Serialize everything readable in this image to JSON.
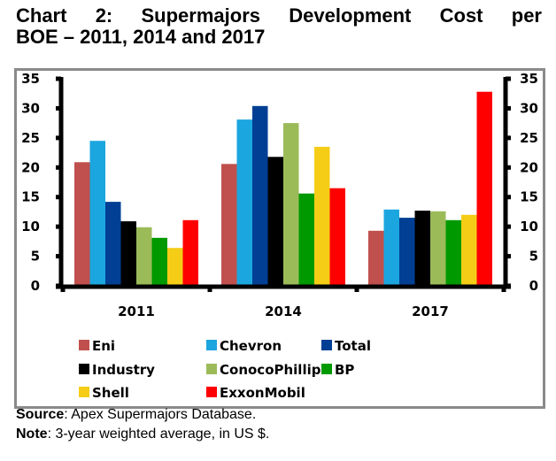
{
  "title_line1": "Chart 2: Supermajors Development Cost per",
  "title_line2": "BOE – 2011, 2014 and 2017",
  "footer": {
    "source_label": "Source",
    "source_text": ": Apex Supermajors Database.",
    "note_label": "Note",
    "note_text": ": 3-year weighted average, in US $."
  },
  "chart_data": {
    "type": "bar",
    "title": "Chart 2: Supermajors Development Cost per BOE – 2011, 2014 and 2017",
    "xlabel": "",
    "ylabel": "",
    "ylim": [
      0,
      35
    ],
    "yticks": [
      0,
      5,
      10,
      15,
      20,
      25,
      30,
      35
    ],
    "secondary_yticks": [
      0,
      5,
      10,
      15,
      20,
      25,
      30,
      35
    ],
    "grid": false,
    "legend_position": "bottom",
    "categories": [
      "2011",
      "2014",
      "2017"
    ],
    "series": [
      {
        "name": "Eni",
        "color": "#c0504d",
        "values": [
          20.9,
          20.6,
          9.3
        ]
      },
      {
        "name": "Chevron",
        "color": "#1ca6df",
        "values": [
          24.5,
          28.1,
          12.9
        ]
      },
      {
        "name": "Total",
        "color": "#003f94",
        "values": [
          14.2,
          30.4,
          11.5
        ]
      },
      {
        "name": "Industry",
        "color": "#000000",
        "values": [
          10.9,
          21.8,
          12.7
        ]
      },
      {
        "name": "ConocoPhillips",
        "color": "#9bbb59",
        "values": [
          9.9,
          27.5,
          12.6
        ]
      },
      {
        "name": "BP",
        "color": "#009900",
        "values": [
          8.1,
          15.6,
          11.1
        ]
      },
      {
        "name": "Shell",
        "color": "#f5cd17",
        "values": [
          6.4,
          23.5,
          12.0
        ]
      },
      {
        "name": "ExxonMobil",
        "color": "#ff0000",
        "values": [
          11.1,
          16.5,
          32.8
        ]
      }
    ]
  }
}
